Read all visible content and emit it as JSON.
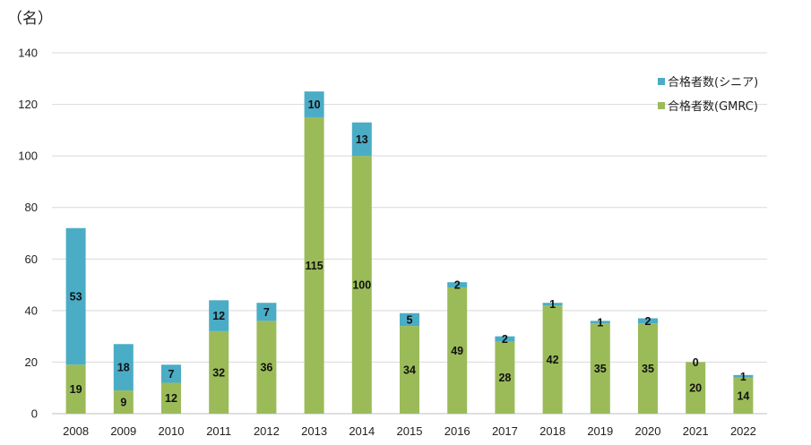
{
  "chart_data": {
    "type": "bar",
    "stacked": true,
    "unit_label": "（名）",
    "categories": [
      "2008",
      "2009",
      "2010",
      "2011",
      "2012",
      "2013",
      "2014",
      "2015",
      "2016",
      "2017",
      "2018",
      "2019",
      "2020",
      "2021",
      "2022"
    ],
    "series": [
      {
        "name": "合格者数(GMRC)",
        "color": "#9bbb59",
        "values": [
          19,
          9,
          12,
          32,
          36,
          115,
          100,
          34,
          49,
          28,
          42,
          35,
          35,
          20,
          14
        ]
      },
      {
        "name": "合格者数(シニア)",
        "color": "#4bacc6",
        "values": [
          53,
          18,
          7,
          12,
          7,
          10,
          13,
          5,
          2,
          2,
          1,
          1,
          2,
          0,
          1
        ]
      }
    ],
    "ylim": [
      0,
      140
    ],
    "yticks": [
      0,
      20,
      40,
      60,
      80,
      100,
      120,
      140
    ],
    "grid": true,
    "legend_position": "top-right",
    "legend_order": [
      "合格者数(シニア)",
      "合格者数(GMRC)"
    ]
  }
}
